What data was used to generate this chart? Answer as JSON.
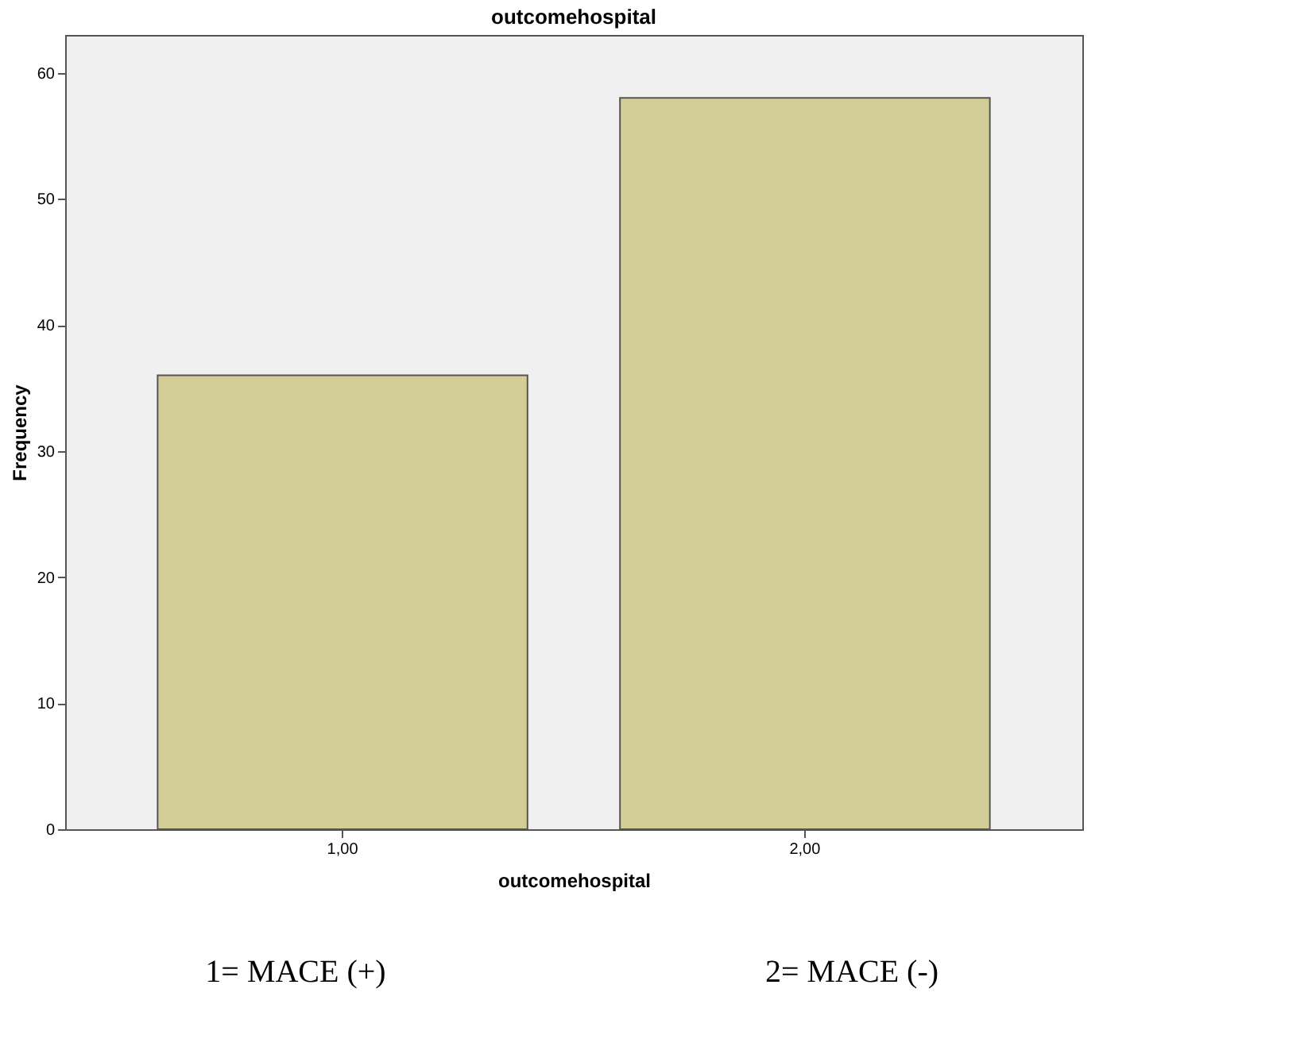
{
  "chart_data": {
    "type": "bar",
    "title": "outcomehospital",
    "xlabel": "outcomehospital",
    "ylabel": "Frequency",
    "categories": [
      "1,00",
      "2,00"
    ],
    "values": [
      36,
      58
    ],
    "color": "#d3ce97",
    "ylim": [
      0,
      63
    ],
    "yticks": [
      0,
      10,
      20,
      30,
      40,
      50,
      60
    ],
    "grid": false,
    "annotations": [
      "1= MACE (+)",
      "2= MACE (-)"
    ]
  }
}
